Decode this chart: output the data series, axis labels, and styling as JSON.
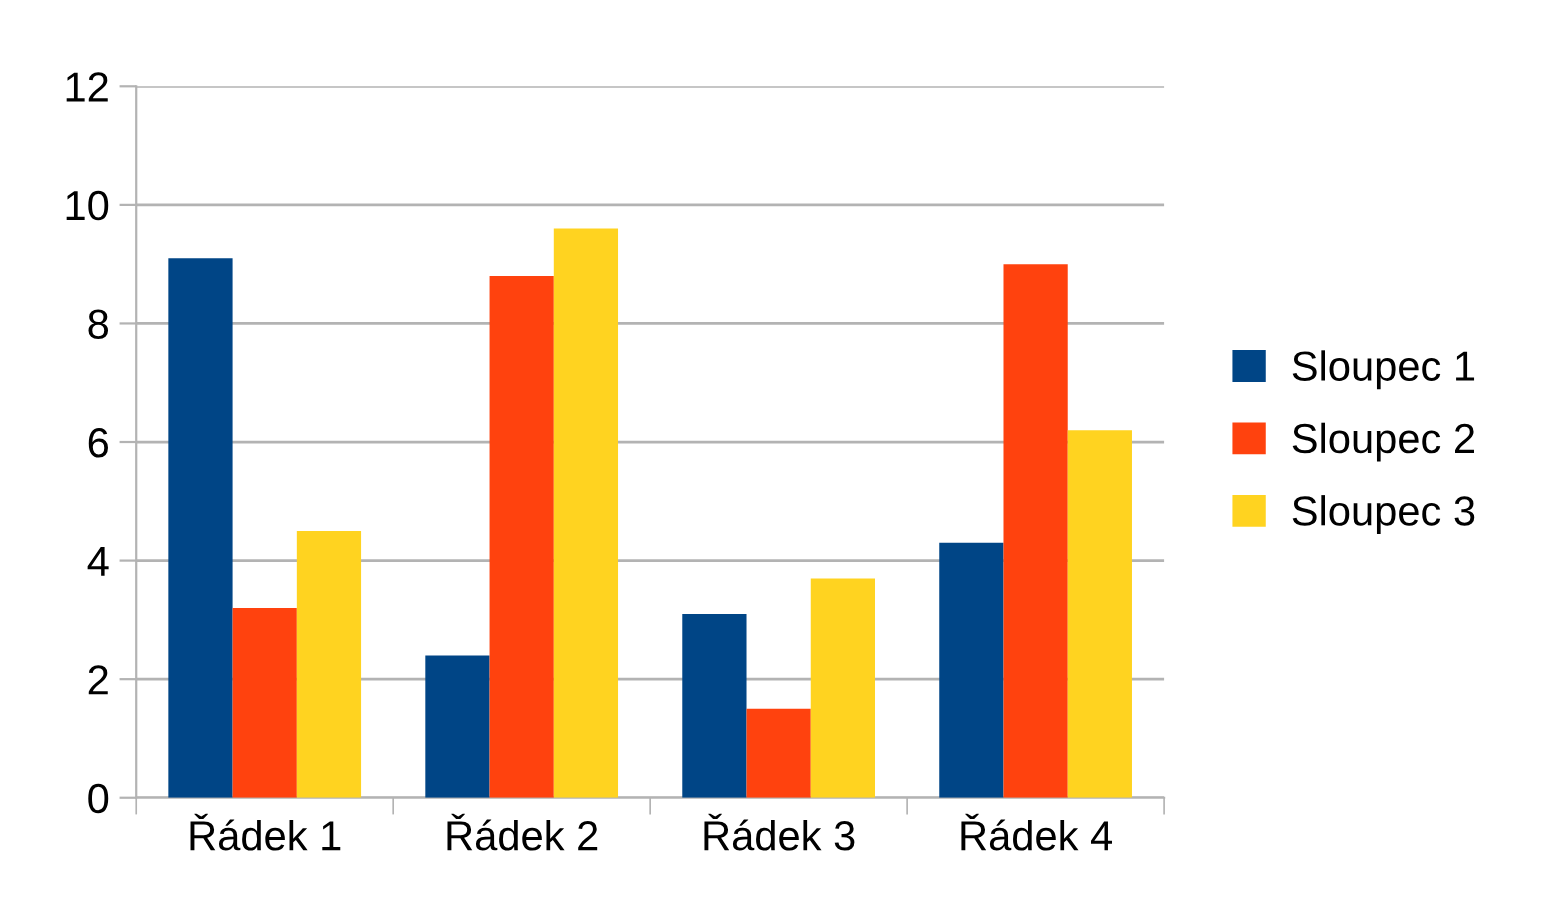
{
  "chart_data": {
    "type": "bar",
    "categories": [
      "Řádek 1",
      "Řádek 2",
      "Řádek 3",
      "Řádek 4"
    ],
    "series": [
      {
        "name": "Sloupec 1",
        "color": "#004586",
        "values": [
          9.1,
          2.4,
          3.1,
          4.3
        ]
      },
      {
        "name": "Sloupec 2",
        "color": "#ff420e",
        "values": [
          3.2,
          8.8,
          1.5,
          9.0
        ]
      },
      {
        "name": "Sloupec 3",
        "color": "#ffd320",
        "values": [
          4.5,
          9.6,
          3.7,
          6.2
        ]
      }
    ],
    "ylim": [
      0,
      12
    ],
    "yticks": [
      0,
      2,
      4,
      6,
      8,
      10,
      12
    ],
    "grid": "y",
    "legend": "right"
  }
}
